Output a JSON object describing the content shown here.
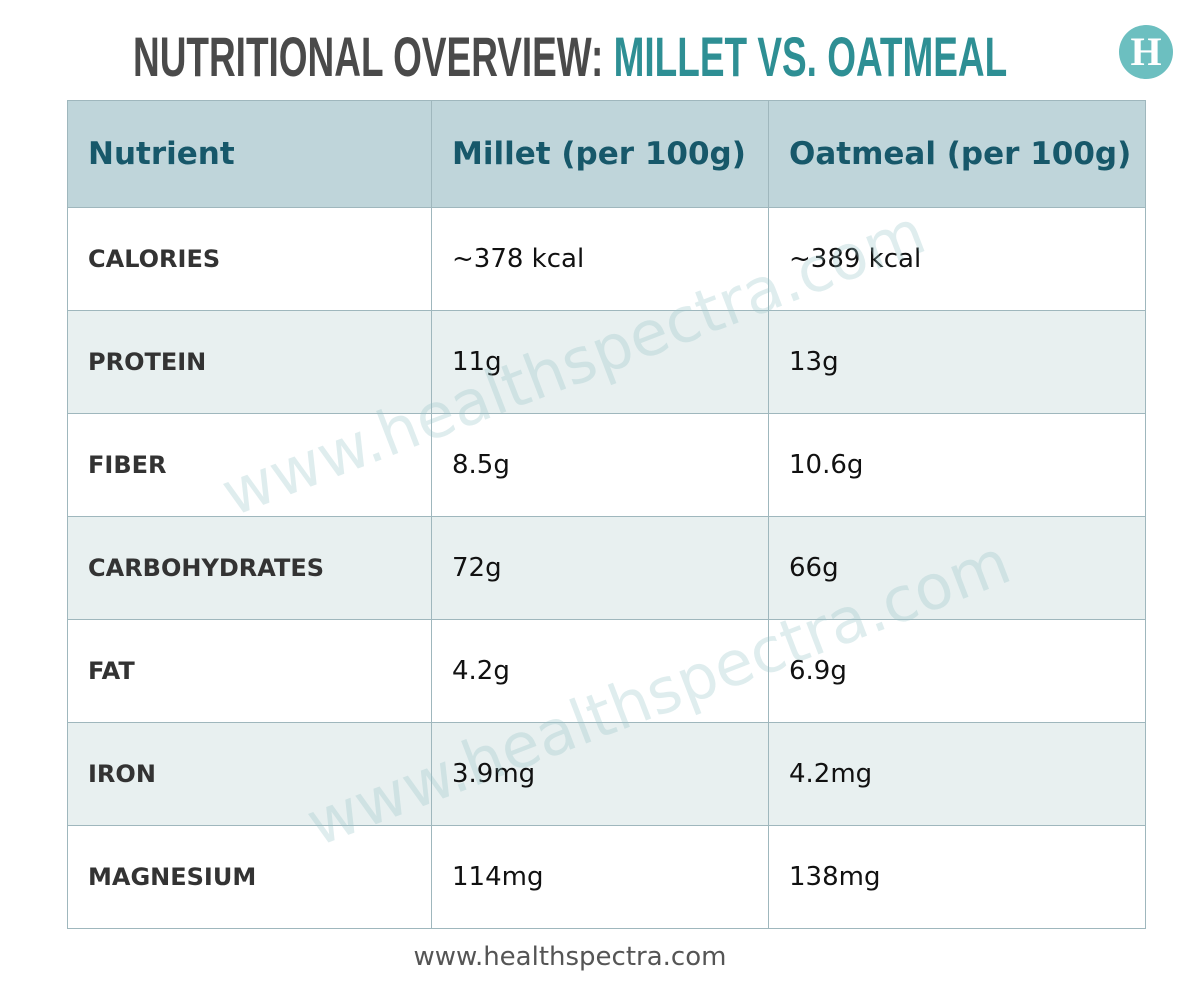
{
  "header": {
    "title_part1": "NUTRITIONAL OVERVIEW:",
    "title_part2": "MILLET VS. OATMEAL",
    "logo": "H"
  },
  "table": {
    "columns": [
      "Nutrient",
      "Millet (per 100g)",
      "Oatmeal (per 100g)"
    ],
    "rows": [
      [
        "CALORIES",
        "~378 kcal",
        "~389 kcal"
      ],
      [
        "PROTEIN",
        "11g",
        "13g"
      ],
      [
        "FIBER",
        "8.5g",
        "10.6g"
      ],
      [
        "CARBOHYDRATES",
        "72g",
        "66g"
      ],
      [
        "FAT",
        "4.2g",
        "6.9g"
      ],
      [
        "IRON",
        "3.9mg",
        "4.2mg"
      ],
      [
        "MAGNESIUM",
        "114mg",
        "138mg"
      ]
    ]
  },
  "watermarks": [
    "www.healthspectra.com",
    "www.healthspectra.com"
  ],
  "footer": "www.healthspectra.com"
}
